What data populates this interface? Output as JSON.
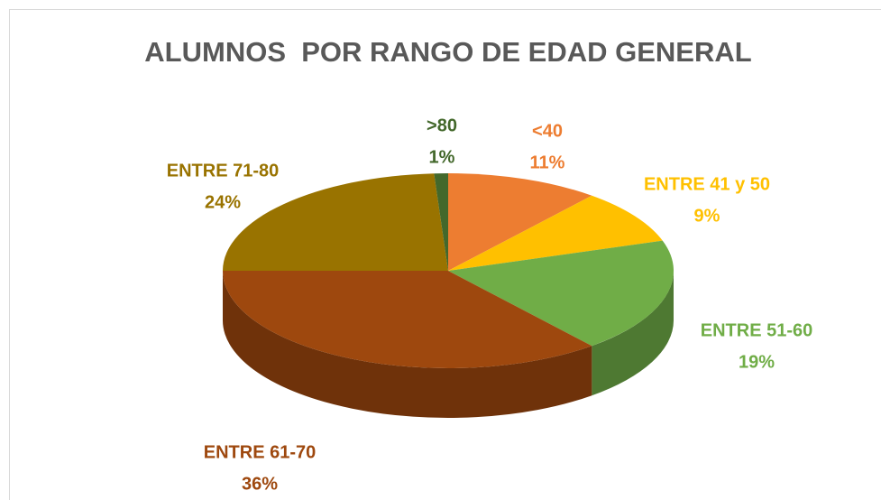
{
  "chart_data": {
    "type": "pie3d",
    "title": "ALUMNOS  POR RANGO DE EDAD GENERAL",
    "categories": [
      "<40",
      "ENTRE 41 y 50",
      "ENTRE 51-60",
      "ENTRE 61-70",
      "ENTRE 71-80",
      ">80"
    ],
    "values": [
      11,
      9,
      19,
      36,
      24,
      1
    ],
    "value_labels": [
      "11%",
      "9%",
      "19%",
      "36%",
      "24%",
      "1%"
    ],
    "colors": [
      "#ed7d31",
      "#ffc000",
      "#70ad47",
      "#9e480e",
      "#997300",
      "#43682b"
    ]
  }
}
